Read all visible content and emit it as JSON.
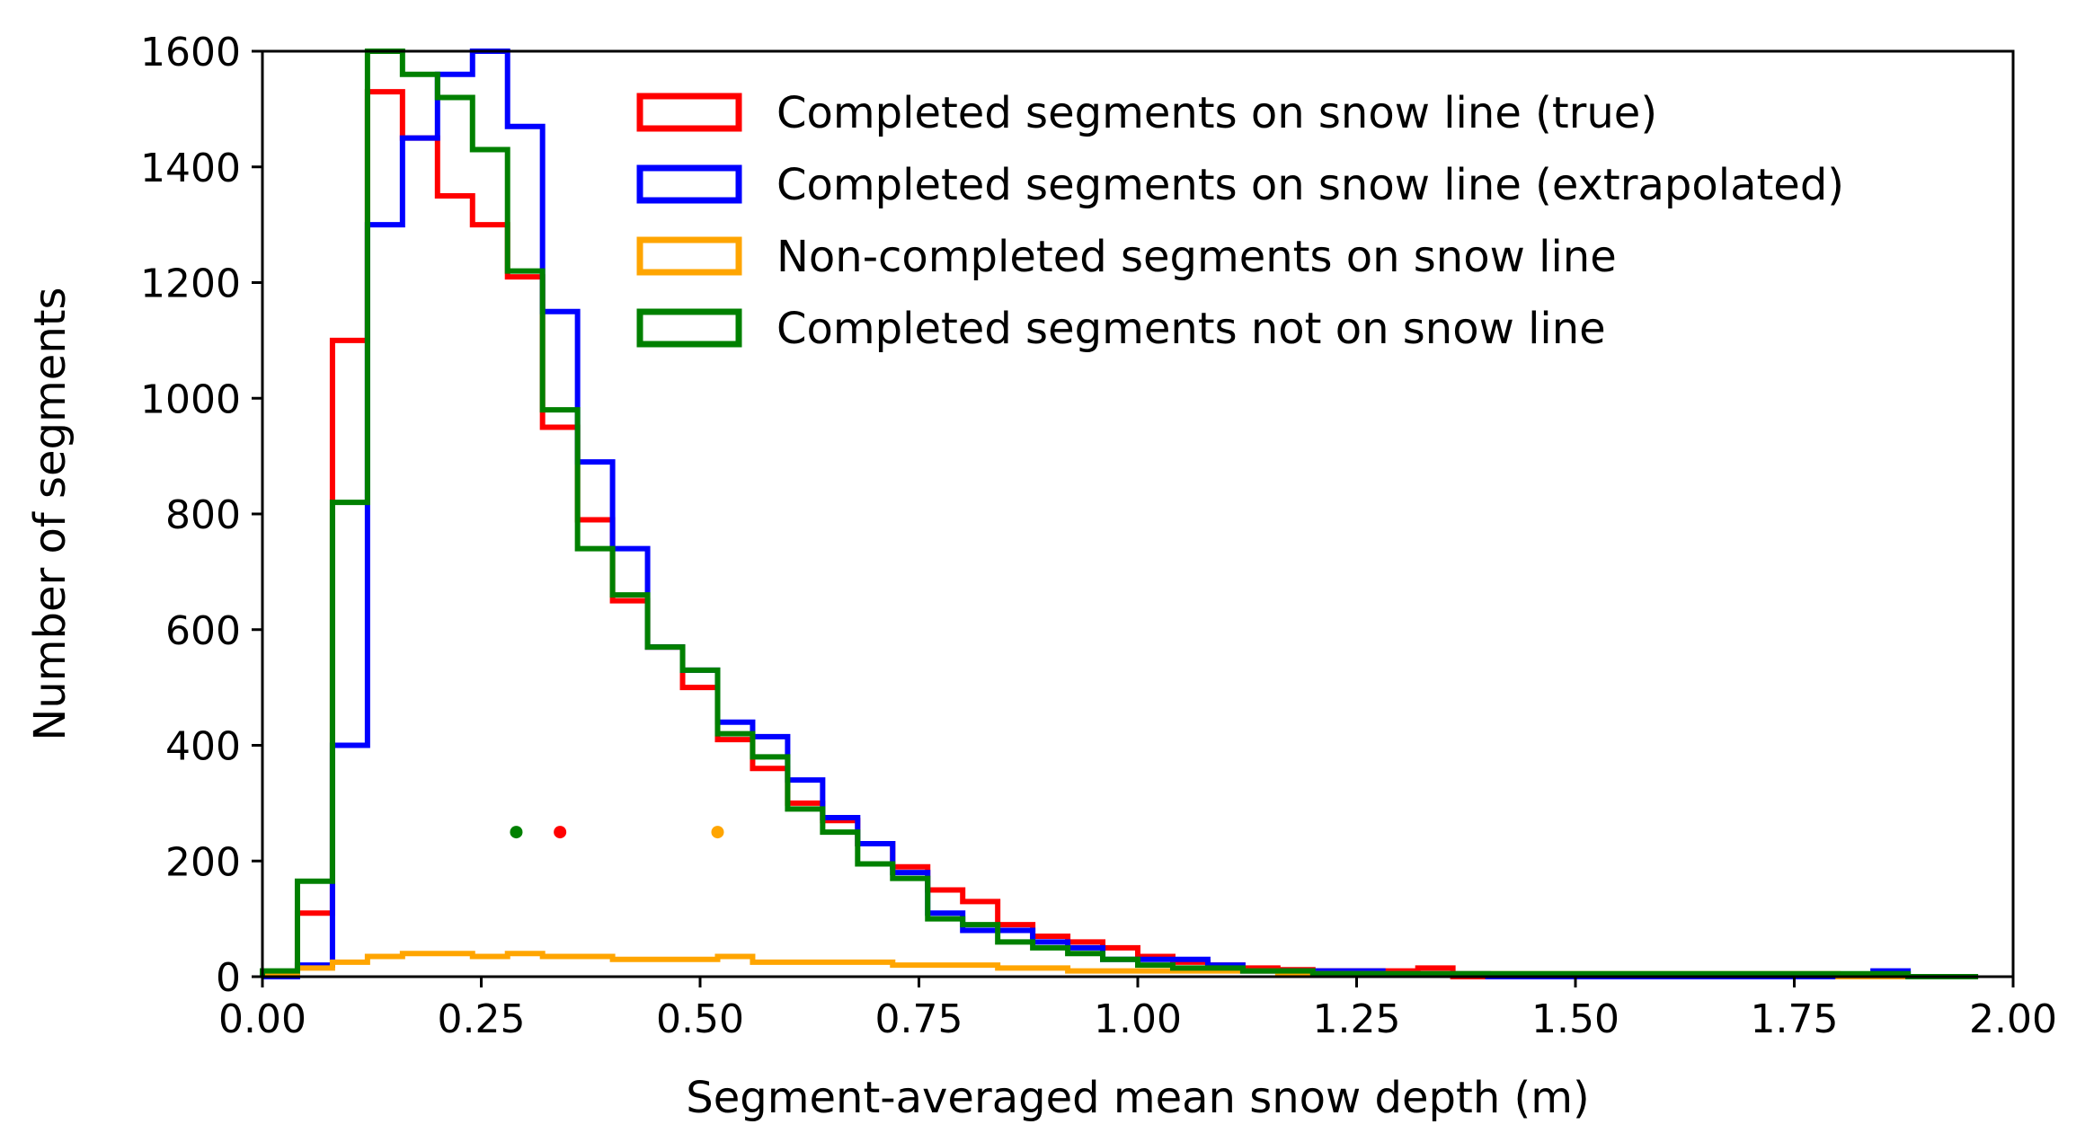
{
  "chart_data": {
    "type": "histogram",
    "title": "",
    "xlabel": "Segment-averaged mean snow depth (m)",
    "ylabel": "Number of segments",
    "xlim": [
      0,
      2
    ],
    "ylim": [
      0,
      1600
    ],
    "xticks": [
      "0.00",
      "0.25",
      "0.50",
      "0.75",
      "1.00",
      "1.25",
      "1.50",
      "1.75",
      "2.00"
    ],
    "yticks": [
      "0",
      "200",
      "400",
      "600",
      "800",
      "1000",
      "1200",
      "1400",
      "1600"
    ],
    "bin_width": 0.04,
    "legend_position": "top-right",
    "series": [
      {
        "name": "Completed segments on snow line (true)",
        "color": "#ff0000",
        "bin_start": 0.0,
        "values": [
          5,
          110,
          1100,
          1530,
          1450,
          1350,
          1300,
          1210,
          950,
          790,
          650,
          570,
          500,
          410,
          360,
          300,
          270,
          230,
          190,
          150,
          130,
          90,
          70,
          60,
          50,
          35,
          25,
          20,
          15,
          12,
          10,
          10,
          10,
          15,
          0,
          0,
          0,
          0,
          0,
          0,
          0,
          0,
          0,
          0,
          0,
          0,
          0,
          0,
          0
        ]
      },
      {
        "name": "Completed segments on snow line (extrapolated)",
        "color": "#0000ff",
        "bin_start": 0.0,
        "values": [
          0,
          20,
          400,
          1300,
          1450,
          1560,
          1600,
          1470,
          1150,
          890,
          740,
          570,
          530,
          440,
          415,
          340,
          275,
          230,
          180,
          110,
          80,
          80,
          60,
          50,
          30,
          30,
          30,
          20,
          10,
          10,
          10,
          10,
          5,
          5,
          5,
          0,
          0,
          0,
          0,
          0,
          0,
          0,
          0,
          0,
          0,
          0,
          10,
          0,
          0
        ]
      },
      {
        "name": "Non-completed segments on snow line",
        "color": "#ffa500",
        "bin_start": 0.0,
        "values": [
          5,
          15,
          25,
          35,
          40,
          40,
          35,
          40,
          35,
          35,
          30,
          30,
          30,
          35,
          25,
          25,
          25,
          25,
          20,
          20,
          20,
          15,
          15,
          10,
          10,
          10,
          10,
          10,
          10,
          5,
          5,
          5,
          5,
          5,
          5,
          5,
          5,
          5,
          5,
          5,
          5,
          5,
          5,
          5,
          5,
          0,
          0,
          0,
          0
        ]
      },
      {
        "name": "Completed segments not on snow line",
        "color": "#008000",
        "bin_start": 0.0,
        "values": [
          10,
          165,
          820,
          1600,
          1560,
          1520,
          1430,
          1220,
          980,
          740,
          660,
          570,
          530,
          420,
          380,
          290,
          250,
          195,
          170,
          100,
          90,
          60,
          50,
          40,
          30,
          20,
          15,
          15,
          10,
          10,
          5,
          5,
          5,
          5,
          5,
          5,
          5,
          5,
          5,
          5,
          5,
          5,
          5,
          5,
          5,
          5,
          5,
          0,
          0
        ]
      }
    ],
    "mean_markers": [
      {
        "name": "green-mean",
        "color": "#008000",
        "x": 0.29,
        "y": 250
      },
      {
        "name": "red-mean",
        "color": "#ff0000",
        "x": 0.34,
        "y": 250
      },
      {
        "name": "orange-mean",
        "color": "#ffa500",
        "x": 0.52,
        "y": 250
      }
    ]
  }
}
